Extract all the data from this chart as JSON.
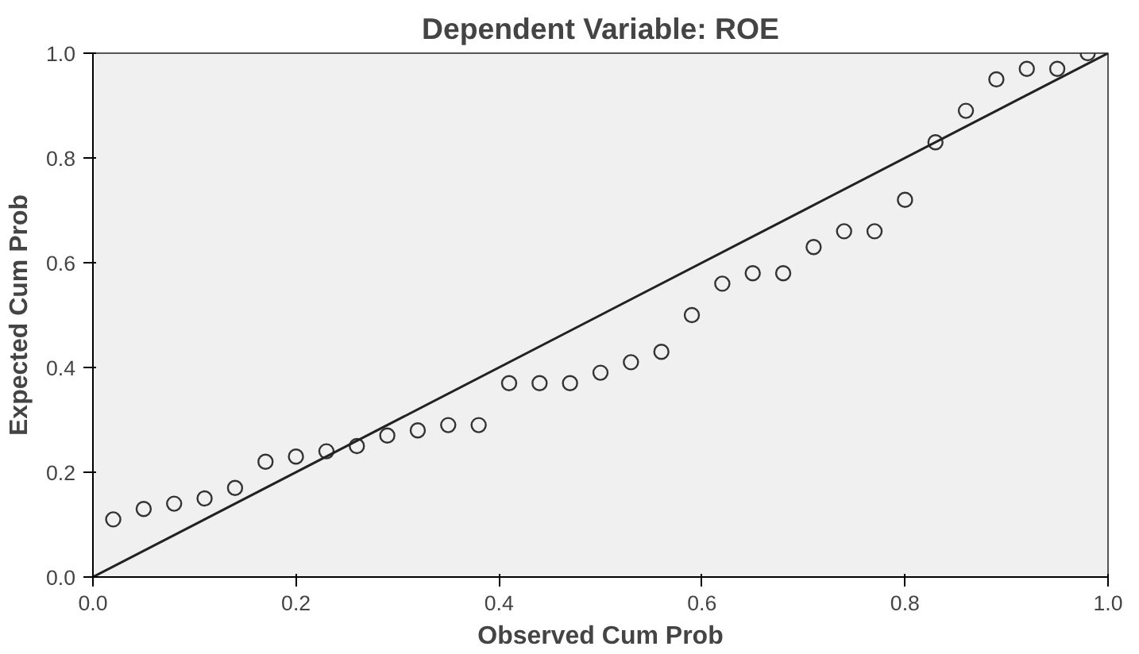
{
  "chart_data": {
    "type": "scatter",
    "title": "Dependent Variable: ROE",
    "xlabel": "Observed Cum Prob",
    "ylabel": "Expected Cum Prob",
    "xlim": [
      0,
      1
    ],
    "ylim": [
      0,
      1
    ],
    "xticks": [
      {
        "value": 0,
        "label": "0.0"
      },
      {
        "value": 0.2,
        "label": "0.2"
      },
      {
        "value": 0.4,
        "label": "0.4"
      },
      {
        "value": 0.6,
        "label": "0.6"
      },
      {
        "value": 0.8,
        "label": "0.8"
      },
      {
        "value": 1,
        "label": "1.0"
      }
    ],
    "yticks": [
      {
        "value": 0,
        "label": "0.0"
      },
      {
        "value": 0.2,
        "label": "0.2"
      },
      {
        "value": 0.4,
        "label": "0.4"
      },
      {
        "value": 0.6,
        "label": "0.6"
      },
      {
        "value": 0.8,
        "label": "0.8"
      },
      {
        "value": 1,
        "label": "1.0"
      }
    ],
    "grid": false,
    "series": [
      {
        "marker": "circle",
        "color": "#333333",
        "x": [
          0.02,
          0.05,
          0.08,
          0.11,
          0.14,
          0.17,
          0.2,
          0.23,
          0.26,
          0.29,
          0.32,
          0.35,
          0.38,
          0.41,
          0.44,
          0.47,
          0.5,
          0.53,
          0.56,
          0.59,
          0.62,
          0.65,
          0.68,
          0.71,
          0.74,
          0.77,
          0.8,
          0.83,
          0.86,
          0.89,
          0.92,
          0.95,
          0.98
        ],
        "values": [
          0.11,
          0.13,
          0.14,
          0.15,
          0.17,
          0.22,
          0.23,
          0.24,
          0.25,
          0.27,
          0.28,
          0.29,
          0.29,
          0.37,
          0.37,
          0.37,
          0.39,
          0.41,
          0.43,
          0.5,
          0.56,
          0.58,
          0.58,
          0.63,
          0.66,
          0.66,
          0.72,
          0.83,
          0.89,
          0.95,
          0.97,
          0.97,
          1.0
        ]
      },
      {
        "type": "line",
        "color": "#222222",
        "x": [
          0,
          1
        ],
        "values": [
          0,
          1
        ]
      }
    ]
  }
}
